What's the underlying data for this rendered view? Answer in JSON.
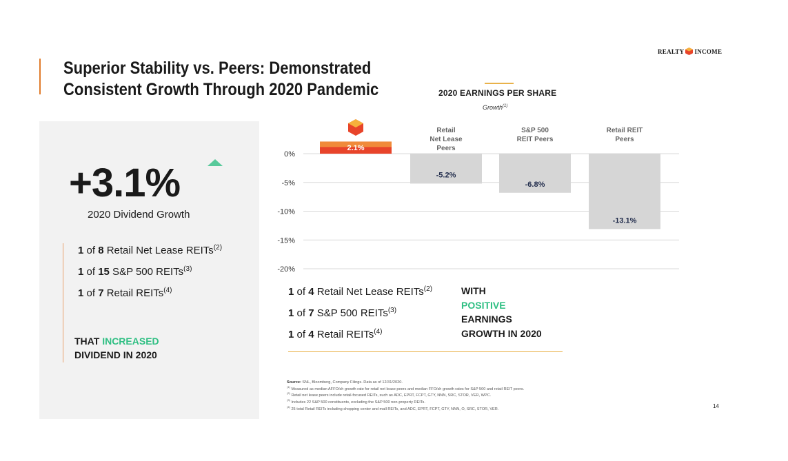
{
  "slide": {
    "title_line1": "Superior Stability vs. Peers: Demonstrated",
    "title_line2": "Consistent Growth Through 2020 Pandemic",
    "logo_text_left": "REALTY",
    "logo_text_right": "INCOME",
    "page_number": "14",
    "colors": {
      "accent_orange": "#e07b2a",
      "green": "#2fbf83",
      "bar_highlight": "#e8442a",
      "bar_peer": "#d6d6d6",
      "panel_bg": "#f2f2f2"
    }
  },
  "left_panel": {
    "big_value": "+3.1%",
    "caption": "2020 Dividend Growth",
    "rows": [
      {
        "prefix": "1",
        "of": " of ",
        "count": "8",
        "label": " Retail Net Lease REITs",
        "note": "(2)"
      },
      {
        "prefix": "1",
        "of": " of ",
        "count": "15",
        "label": " S&P 500 REITs",
        "note": "(3)"
      },
      {
        "prefix": "1",
        "of": " of ",
        "count": "7",
        "label": " Retail REITs",
        "note": "(4)"
      }
    ],
    "tagline_pre": "THAT ",
    "tagline_highlight": "INCREASED",
    "tagline_post": "DIVIDEND IN 2020",
    "icon": "up-triangle-icon"
  },
  "chart_data": {
    "type": "bar",
    "title": "2020 EARNINGS PER SHARE",
    "subtitle": "Growth",
    "subtitle_note": "(1)",
    "categories": [
      "",
      "Retail Net Lease Peers",
      "S&P 500 REIT Peers",
      "Retail REIT Peers"
    ],
    "category_lines": [
      [],
      [
        "Retail",
        "Net Lease",
        "Peers"
      ],
      [
        "S&P 500",
        "REIT Peers"
      ],
      [
        "Retail REIT",
        "Peers"
      ]
    ],
    "values": [
      2.1,
      -5.2,
      -6.8,
      -13.1
    ],
    "data_labels": [
      "2.1%",
      "-5.2%",
      "-6.8%",
      "-13.1%"
    ],
    "ylim": [
      -20,
      2.5
    ],
    "yticks": [
      0,
      -5,
      -10,
      -15,
      -20
    ],
    "ytick_labels": [
      "0%",
      "-5%",
      "-10%",
      "-15%",
      "-20%"
    ],
    "grid": true,
    "first_category_icon": "realty-income-logo-icon"
  },
  "bottom": {
    "rows": [
      {
        "prefix": "1",
        "of": " of ",
        "count": "4",
        "label": " Retail Net Lease REITs",
        "note": "(2)"
      },
      {
        "prefix": "1",
        "of": " of ",
        "count": "7",
        "label": " S&P 500 REITs",
        "note": "(3)"
      },
      {
        "prefix": "1",
        "of": " of ",
        "count": "4",
        "label": " Retail REITs",
        "note": "(4)"
      }
    ],
    "with": "WITH",
    "positive": "POSITIVE",
    "earnings": "EARNINGS",
    "growth": "GROWTH IN 2020"
  },
  "footnotes": {
    "source_label": "Source:",
    "source_text": " SNL, Bloomberg, Company Filings. Data as of 12/31/2020.",
    "lines": [
      {
        "num": "(1)",
        "text": " Measured as median AFFO/sh growth rate for retail net lease peers and median FFO/sh growth rates for S&P 500 and retail REIT peers."
      },
      {
        "num": "(2)",
        "text": " Retail net lease peers include retail-focused REITs, such as ADC, EPRT, FCPT, GTY, NNN, SRC, STOR, VER, WPC."
      },
      {
        "num": "(3)",
        "text": " Includes 22 S&P 500 constituents, excluding the S&P 500 non-property REITs."
      },
      {
        "num": "(4)",
        "text": " 25 total Retail REITs including shopping center and mall REITs, and ADC, EPRT, FCPT, GTY, NNN, O, SRC, STOR, VER."
      }
    ]
  }
}
